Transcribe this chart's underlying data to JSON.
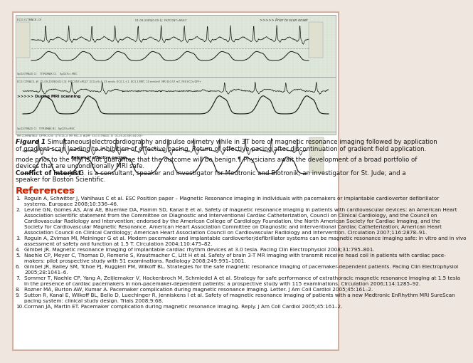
{
  "bg_color": "#f0e6e0",
  "page_bg": "#ffffff",
  "border_color": "#d4b0a0",
  "fig_width": 4.74,
  "fig_height": 4.91,
  "figure_caption_bold": "Figure 1",
  "figure_caption_line1": " Simultaneous electrocardiography and pulse oximetry while in 3T bore of magnetic resonance imaging followed by application",
  "figure_caption_line2": "of gradient scan leading to inhibition of effective pacing. Return of effective pacing after discontinuation of gradient field application.",
  "body_line1": "mode prior to the MRI is not guarantee that the outcome will be benign.¶ Physicians await the development of a broad portfolio of",
  "body_line2": "devices that are unconditionally MRI safe.",
  "conflict_bold": "Conflict of interest:",
  "conflict_line1": " J.R.G. is a consultant, speaker and investigator for Medtronic and Biotronik; an investigator for St. Jude; and a",
  "conflict_line2": "speaker for Boston Scientific.",
  "references_title": "References",
  "references": [
    {
      "num": "1.",
      "text": "Roguin A, Schwitter J, Vahlhaus C et al. ESC Position paper – Magnetic Resonance imaging in individuals with pacemakers or implantable cardioverter defibrillator",
      "text2": "systems. Europace 2008;",
      "bold": "10",
      "text3": ":336–46."
    },
    {
      "num": "2.",
      "text": "Levine GN, Gomes AS, Arai AE, Bluemke DA, Flamm SD, Kanal E et al. Safety of magnetic resonance imaging in patients with cardiovascular devices: an American Heart",
      "lines": [
        "Association scientific statement from the Committee on Diagnostic and Interventional Cardiac Catheterization, Council on Clinical Cardiology, and the Council on",
        "Cardiovascular Radiology and Intervention; endorsed by the American College of Cardiology Foundation, the North American Society for Cardiac Imaging, and the",
        "Society for Cardiovascular Magnetic Resonance. American Heart Association Committee on Diagnostic and Interventional Cardiac Catheterization; American Heart",
        "Association Council on Clinical Cardiology; American Heart Association Council on Cardiovascular Radiology and Intervention. Circulation 2007;",
        "116",
        ":2878–91."
      ]
    },
    {
      "num": "3.",
      "text": "Roguin A, Zviman MI, Meininger G et al. Modern pacemaker and implantable cardioverter/defibrillator systems can be magnetic resonance imaging safe: in vitro and in vivo",
      "text2": "assessment of safety and function at 1.5 T. Circulation 2004;",
      "bold": "110",
      "text3": ":475–82."
    },
    {
      "num": "4.",
      "text": "Gimbel JR. Magnetic resonance imaging of implantable cardiac rhythm devices at 3.0 tesla. Pacing Clin Electrophysiol 2008;",
      "bold": "31",
      "text3": ":795–801."
    },
    {
      "num": "5.",
      "text": "Naehle CP, Meyer C, Thomas D, Remerie S, Krautmacher C, Litt H et al. Safety of brain 3-T MR imaging with transmit receive head coil in patients with cardiac pace-",
      "text2": "makers: pilot prospective study with 51 examinations. Radiology 2008;",
      "bold": "249",
      "text3": ":991–1001."
    },
    {
      "num": "6.",
      "text": "Gimbel JR, Bailey SM, Tchoe PJ, Ruggieri PM, Wilkoff BL. Strategies for the safe magnetic resonance imaging of pacemaker-dependent patients. Pacing Clin Electrophysiol",
      "text2": "2005;",
      "bold": "28",
      "text3": ":1041–6."
    },
    {
      "num": "7.",
      "text": "Sommer T, Naehle CP, Yang A, Zeijlemaker V, Hackenbroch M, Schmiedel A et al. Strategy for safe performance of extrathoracic magnetic resonance imaging at 1.5 tesla",
      "text2": "in the presence of cardiac pacemakers in non-pacemaker-dependent patients: a prospective study with 115 examinations. Circulation 2006;",
      "bold": "114",
      "text3": ":1285–92."
    },
    {
      "num": "8.",
      "text": "Rozner MA, Burton AW, Kumar A. Pacemaker complication during magnetic resonance imaging. Letter. J Am Coll Cardiol 2005;",
      "bold": "45",
      "text3": ":161–2."
    },
    {
      "num": "9.",
      "text": "Sutton R, Kanal E, Wilkoff BL, Bello D, Luechinger R, Jenniskens I et al. Safety of magnetic resonance imaging of patients with a new Medtronic EnRhythm MRI SureScan",
      "text2": "pacing system: clinical study design. Trials 2008;",
      "bold": "9",
      "text3": ":68."
    },
    {
      "num": "10.",
      "text": "Corman JA, Martin ET. Pacemaker complication during magnetic resonance imaging. Reply. J Am Coll Cardiol 2005;",
      "bold": "45",
      "text3": ":161–2."
    }
  ],
  "ecg_bg": "#dce8dc",
  "ecg_grid_color": "#c8b8b0",
  "text_color": "#1a1a1a",
  "references_color": "#cc2200",
  "label_prior": ">>>>> Prior to scan onset",
  "label_during": ">>>>> During MRI scanning",
  "label_return": "Return of effective pacing"
}
